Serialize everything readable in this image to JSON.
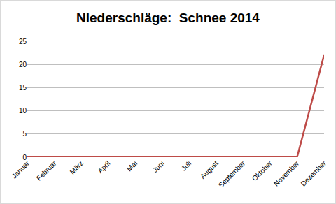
{
  "chart_data": {
    "type": "line",
    "title": "Niederschläge:  Schnee 2014",
    "categories": [
      "Januar",
      "Februar",
      "März",
      "April",
      "Mai",
      "Juni",
      "Juli",
      "August",
      "September",
      "Oktober",
      "November",
      "Dezember"
    ],
    "values": [
      0,
      0,
      0,
      0,
      0,
      0,
      0,
      0,
      0,
      0,
      0,
      22
    ],
    "color": "#be4b48",
    "ylim": [
      0,
      25
    ],
    "yticks": [
      0,
      5,
      10,
      15,
      20,
      25
    ],
    "grid": true
  }
}
